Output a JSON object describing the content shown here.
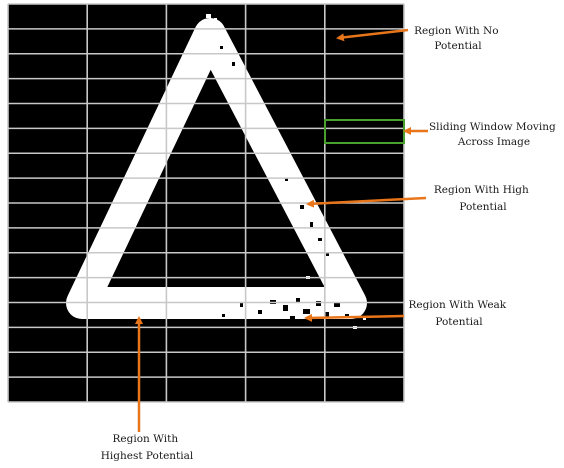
{
  "figure": {
    "colors": {
      "background": "#000000",
      "grid": "#c8c8c8",
      "shape": "#ffffff",
      "arrow": "#e8751a",
      "window": "#4aa02c",
      "text": "#1a1a1a"
    },
    "grid": {
      "columns": 5,
      "rows": 16
    }
  },
  "annotations": [
    {
      "id": "no-potential",
      "lines": [
        "Region With No",
        "Potential"
      ]
    },
    {
      "id": "sliding-window",
      "lines": [
        "Sliding Window Moving",
        "Across Image"
      ]
    },
    {
      "id": "high-potential",
      "lines": [
        "Region With High",
        "Potential"
      ]
    },
    {
      "id": "weak-potential",
      "lines": [
        "Region With Weak",
        "Potential"
      ]
    },
    {
      "id": "highest-potential",
      "lines": [
        "Region With",
        "Highest Potential"
      ]
    }
  ]
}
